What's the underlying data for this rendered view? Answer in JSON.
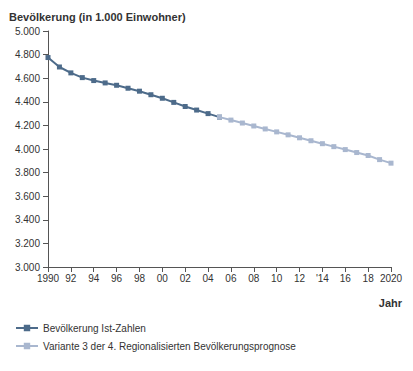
{
  "chart_data": {
    "type": "line",
    "title": "Bevölkerung (in 1.000 Einwohner)",
    "x_label": "Jahr",
    "categories": [
      "1990",
      null,
      "92",
      null,
      "94",
      null,
      "96",
      null,
      "98",
      null,
      "00",
      null,
      "02",
      null,
      "04",
      null,
      "06",
      null,
      "08",
      null,
      "10",
      null,
      "12",
      null,
      "'14",
      null,
      "16",
      null,
      "18",
      null,
      "2020"
    ],
    "series": [
      {
        "name": "Bevölkerung Ist-Zahlen",
        "color": "#4d6b8a",
        "marker": "square",
        "line_style": "solid",
        "values": [
          4775,
          4695,
          4645,
          4605,
          4580,
          4560,
          4540,
          4515,
          4490,
          4460,
          4430,
          4395,
          4360,
          4330,
          4300,
          4270,
          null,
          null,
          null,
          null,
          null,
          null,
          null,
          null,
          null,
          null,
          null,
          null,
          null,
          null,
          null
        ]
      },
      {
        "name": "Variante 3 der 4. Regionalisierten Bevölkerungsprognose",
        "color": "#a9b7cf",
        "marker": "square",
        "line_style": "solid",
        "values": [
          null,
          null,
          null,
          null,
          null,
          null,
          null,
          null,
          null,
          null,
          null,
          null,
          null,
          null,
          null,
          4270,
          4245,
          4220,
          4195,
          4170,
          4145,
          4120,
          4095,
          4070,
          4045,
          4020,
          3995,
          3970,
          3945,
          3910,
          3880
        ]
      }
    ],
    "ylim": [
      3000,
      5000
    ],
    "yticks": [
      {
        "value": 3000,
        "label": "3.000"
      },
      {
        "value": 3200,
        "label": "3.200"
      },
      {
        "value": 3400,
        "label": "3.400"
      },
      {
        "value": 3600,
        "label": "3.600"
      },
      {
        "value": 3800,
        "label": "3.800"
      },
      {
        "value": 4000,
        "label": "4.000"
      },
      {
        "value": 4200,
        "label": "4.200"
      },
      {
        "value": 4400,
        "label": "4.400"
      },
      {
        "value": 4600,
        "label": "4.600"
      },
      {
        "value": 4800,
        "label": "4.800"
      },
      {
        "value": 5000,
        "label": "5.000"
      }
    ],
    "grid": false,
    "legend": "bottom-left"
  }
}
